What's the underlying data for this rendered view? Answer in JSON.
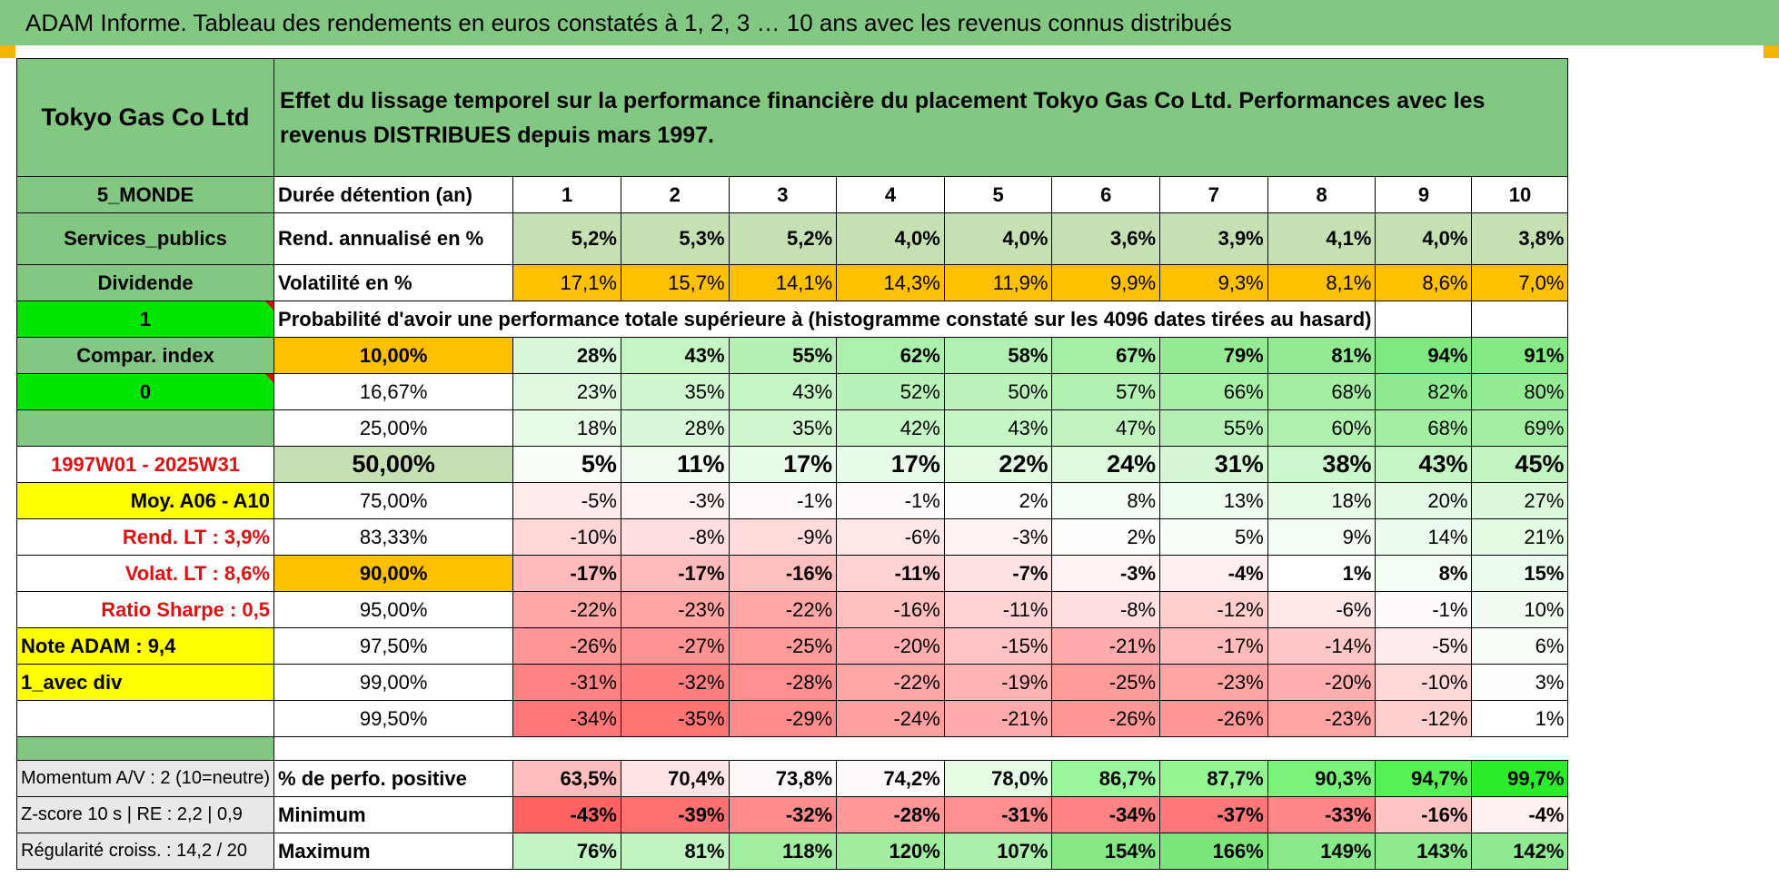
{
  "title": "ADAM Informe. Tableau des rendements en euros constatés à 1, 2, 3 … 10 ans avec les revenus connus distribués",
  "header": {
    "company": "Tokyo Gas Co Ltd",
    "description": "Effet du lissage temporel sur la performance financière du placement Tokyo Gas Co Ltd. Performances avec les revenus DISTRIBUES depuis mars 1997."
  },
  "sidebar": {
    "region": "5_MONDE",
    "sector": "Services_publics",
    "income_type": "Dividende",
    "value_1": "1",
    "compar_index": "Compar. index",
    "value_0": "0",
    "period": "1997W01 - 2025W31",
    "moy": "Moy. A06 - A10",
    "rend_lt": "Rend. LT :    3,9%",
    "volat_lt": "Volat. LT :    8,6%",
    "sharpe": "Ratio Sharpe :    0,5",
    "note": "Note ADAM : 9,4",
    "avec_div": "1_avec div"
  },
  "years": [
    "1",
    "2",
    "3",
    "4",
    "5",
    "6",
    "7",
    "8",
    "9",
    "10"
  ],
  "labels": {
    "duree": "Durée détention (an)",
    "rend": "Rend. annualisé en %",
    "vol": "Volatilité en %",
    "proba": "Probabilité d'avoir une performance totale supérieure à (histogramme constaté sur les 4096 dates tirées au hasard)"
  },
  "rend_values": [
    "5,2%",
    "5,3%",
    "5,2%",
    "4,0%",
    "4,0%",
    "3,6%",
    "3,9%",
    "4,1%",
    "4,0%",
    "3,8%"
  ],
  "vol_values": [
    "17,1%",
    "15,7%",
    "14,1%",
    "14,3%",
    "11,9%",
    "9,9%",
    "9,3%",
    "8,1%",
    "8,6%",
    "7,0%"
  ],
  "prob_rows": [
    {
      "p": "10,00%",
      "v": [
        "28%",
        "43%",
        "55%",
        "62%",
        "58%",
        "67%",
        "79%",
        "81%",
        "94%",
        "91%"
      ]
    },
    {
      "p": "16,67%",
      "v": [
        "23%",
        "35%",
        "43%",
        "52%",
        "50%",
        "57%",
        "66%",
        "68%",
        "82%",
        "80%"
      ]
    },
    {
      "p": "25,00%",
      "v": [
        "18%",
        "28%",
        "35%",
        "42%",
        "43%",
        "47%",
        "55%",
        "60%",
        "68%",
        "69%"
      ]
    },
    {
      "p": "50,00%",
      "v": [
        "5%",
        "11%",
        "17%",
        "17%",
        "22%",
        "24%",
        "31%",
        "38%",
        "43%",
        "45%"
      ]
    },
    {
      "p": "75,00%",
      "v": [
        "-5%",
        "-3%",
        "-1%",
        "-1%",
        "2%",
        "8%",
        "13%",
        "18%",
        "20%",
        "27%"
      ]
    },
    {
      "p": "83,33%",
      "v": [
        "-10%",
        "-8%",
        "-9%",
        "-6%",
        "-3%",
        "2%",
        "5%",
        "9%",
        "14%",
        "21%"
      ]
    },
    {
      "p": "90,00%",
      "v": [
        "-17%",
        "-17%",
        "-16%",
        "-11%",
        "-7%",
        "-3%",
        "-4%",
        "1%",
        "8%",
        "15%"
      ]
    },
    {
      "p": "95,00%",
      "v": [
        "-22%",
        "-23%",
        "-22%",
        "-16%",
        "-11%",
        "-8%",
        "-12%",
        "-6%",
        "-1%",
        "10%"
      ]
    },
    {
      "p": "97,50%",
      "v": [
        "-26%",
        "-27%",
        "-25%",
        "-20%",
        "-15%",
        "-21%",
        "-17%",
        "-14%",
        "-5%",
        "6%"
      ]
    },
    {
      "p": "99,00%",
      "v": [
        "-31%",
        "-32%",
        "-28%",
        "-22%",
        "-19%",
        "-25%",
        "-23%",
        "-20%",
        "-10%",
        "3%"
      ]
    },
    {
      "p": "99,50%",
      "v": [
        "-34%",
        "-35%",
        "-29%",
        "-24%",
        "-21%",
        "-26%",
        "-26%",
        "-23%",
        "-12%",
        "1%"
      ]
    }
  ],
  "stats": [
    {
      "left": "Momentum A/V : 2 (10=neutre)",
      "label": "% de perfo. positive",
      "v": [
        "63,5%",
        "70,4%",
        "73,8%",
        "74,2%",
        "78,0%",
        "86,7%",
        "87,7%",
        "90,3%",
        "94,7%",
        "99,7%"
      ]
    },
    {
      "left": "Z-score 10 s | RE : 2,2 | 0,9",
      "label": "Minimum",
      "v": [
        "-43%",
        "-39%",
        "-32%",
        "-28%",
        "-31%",
        "-34%",
        "-37%",
        "-33%",
        "-16%",
        "-4%"
      ]
    },
    {
      "left": "Régularité croiss. : 14,2 / 20",
      "label": "Maximum",
      "v": [
        "76%",
        "81%",
        "118%",
        "120%",
        "107%",
        "154%",
        "166%",
        "149%",
        "143%",
        "142%"
      ]
    }
  ],
  "colors": {
    "header_green": "#82c882",
    "light_green": "#c6e0b4",
    "orange": "#ffc000",
    "bright_green": "#00e600",
    "yellow": "#ffff00",
    "red_text": "#e01010"
  }
}
